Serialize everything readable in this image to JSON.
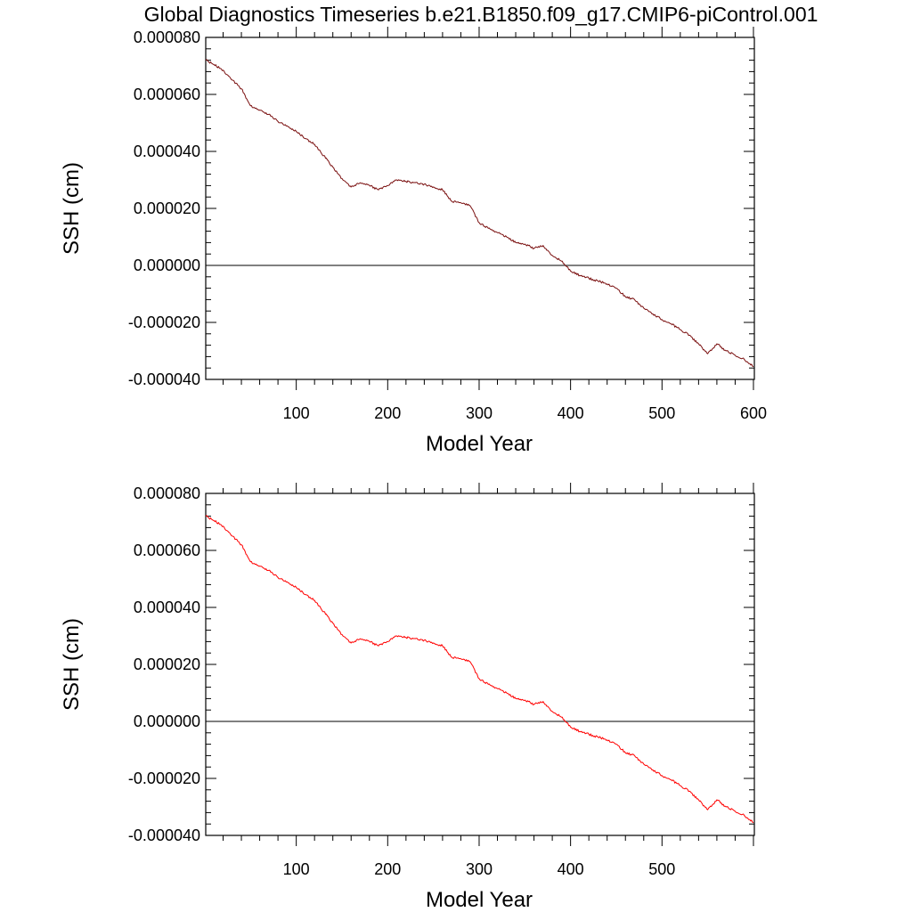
{
  "title": "Global Diagnostics Timeseries b.e21.B1850.f09_g17.CMIP6-piControl.001",
  "chart_data": [
    {
      "type": "line",
      "title": "Global Diagnostics Timeseries b.e21.B1850.f09_g17.CMIP6-piControl.001",
      "xlabel": "Model Year",
      "ylabel": "SSH (cm)",
      "xlim": [
        1,
        601
      ],
      "ylim": [
        -4e-05,
        8e-05
      ],
      "xticks": [
        100,
        200,
        300,
        400,
        500,
        600
      ],
      "xtick_labels": [
        "100",
        "200",
        "300",
        "400",
        "500",
        "600"
      ],
      "yticks": [
        -4e-05,
        -2e-05,
        0,
        2e-05,
        4e-05,
        6e-05,
        8e-05
      ],
      "ytick_labels": [
        "-0.000040",
        "-0.000020",
        "0.000000",
        "0.000020",
        "0.000040",
        "0.000060",
        "0.000080"
      ],
      "reference_line": 0,
      "grid": false,
      "line_color": "#7a0f0f",
      "series": [
        {
          "x": [
            1,
            10,
            20,
            30,
            40,
            50,
            60,
            70,
            80,
            90,
            100,
            110,
            120,
            130,
            140,
            150,
            160,
            170,
            180,
            190,
            200,
            210,
            220,
            230,
            240,
            250,
            260,
            270,
            280,
            290,
            300,
            310,
            320,
            330,
            340,
            350,
            360,
            370,
            380,
            390,
            400,
            410,
            420,
            430,
            440,
            450,
            460,
            470,
            480,
            490,
            500,
            510,
            520,
            530,
            540,
            550,
            560,
            570,
            580,
            590,
            600
          ],
          "values": [
            7.2e-05,
            7.05e-05,
            6.85e-05,
            6.5e-05,
            6.2e-05,
            5.6e-05,
            5.45e-05,
            5.3e-05,
            5.05e-05,
            4.9e-05,
            4.7e-05,
            4.45e-05,
            4.25e-05,
            3.85e-05,
            3.45e-05,
            3.05e-05,
            2.75e-05,
            2.9e-05,
            2.8e-05,
            2.65e-05,
            2.8e-05,
            3e-05,
            2.95e-05,
            2.9e-05,
            2.85e-05,
            2.75e-05,
            2.65e-05,
            2.25e-05,
            2.2e-05,
            2.1e-05,
            1.5e-05,
            1.3e-05,
            1.15e-05,
            1e-05,
            8e-06,
            7.5e-06,
            6e-06,
            7e-06,
            3.5e-06,
            1.5e-06,
            -2e-06,
            -3.5e-06,
            -4.5e-06,
            -5.5e-06,
            -6.5e-06,
            -8e-06,
            -1.1e-05,
            -1.2e-05,
            -1.5e-05,
            -1.7e-05,
            -1.9e-05,
            -2.05e-05,
            -2.25e-05,
            -2.45e-05,
            -2.75e-05,
            -3.1e-05,
            -2.75e-05,
            -3e-05,
            -3.15e-05,
            -3.3e-05,
            -3.55e-05
          ]
        }
      ]
    },
    {
      "type": "line",
      "title": "",
      "xlabel": "Model Year",
      "ylabel": "SSH (cm)",
      "xlim": [
        1,
        601
      ],
      "ylim": [
        -4e-05,
        8e-05
      ],
      "xticks": [
        100,
        200,
        300,
        400,
        500
      ],
      "xtick_labels": [
        "100",
        "200",
        "300",
        "400",
        "500"
      ],
      "yticks": [
        -4e-05,
        -2e-05,
        0,
        2e-05,
        4e-05,
        6e-05,
        8e-05
      ],
      "ytick_labels": [
        "-0.000040",
        "-0.000020",
        "0.000000",
        "0.000020",
        "0.000040",
        "0.000060",
        "0.000080"
      ],
      "reference_line": 0,
      "grid": false,
      "line_color": "#ff0000",
      "series": [
        {
          "x": [
            1,
            10,
            20,
            30,
            40,
            50,
            60,
            70,
            80,
            90,
            100,
            110,
            120,
            130,
            140,
            150,
            160,
            170,
            180,
            190,
            200,
            210,
            220,
            230,
            240,
            250,
            260,
            270,
            280,
            290,
            300,
            310,
            320,
            330,
            340,
            350,
            360,
            370,
            380,
            390,
            400,
            410,
            420,
            430,
            440,
            450,
            460,
            470,
            480,
            490,
            500,
            510,
            520,
            530,
            540,
            550,
            560,
            570,
            580,
            590,
            600
          ],
          "values": [
            7.2e-05,
            7.05e-05,
            6.85e-05,
            6.5e-05,
            6.2e-05,
            5.6e-05,
            5.45e-05,
            5.3e-05,
            5.05e-05,
            4.9e-05,
            4.7e-05,
            4.45e-05,
            4.25e-05,
            3.85e-05,
            3.45e-05,
            3.05e-05,
            2.75e-05,
            2.9e-05,
            2.8e-05,
            2.65e-05,
            2.8e-05,
            3e-05,
            2.95e-05,
            2.9e-05,
            2.85e-05,
            2.75e-05,
            2.65e-05,
            2.25e-05,
            2.2e-05,
            2.1e-05,
            1.5e-05,
            1.3e-05,
            1.15e-05,
            1e-05,
            8e-06,
            7.5e-06,
            6e-06,
            7e-06,
            3.5e-06,
            1.5e-06,
            -2e-06,
            -3.5e-06,
            -4.5e-06,
            -5.5e-06,
            -6.5e-06,
            -8e-06,
            -1.1e-05,
            -1.2e-05,
            -1.5e-05,
            -1.7e-05,
            -1.9e-05,
            -2.05e-05,
            -2.25e-05,
            -2.45e-05,
            -2.75e-05,
            -3.1e-05,
            -2.75e-05,
            -3e-05,
            -3.15e-05,
            -3.3e-05,
            -3.55e-05
          ]
        }
      ]
    }
  ]
}
